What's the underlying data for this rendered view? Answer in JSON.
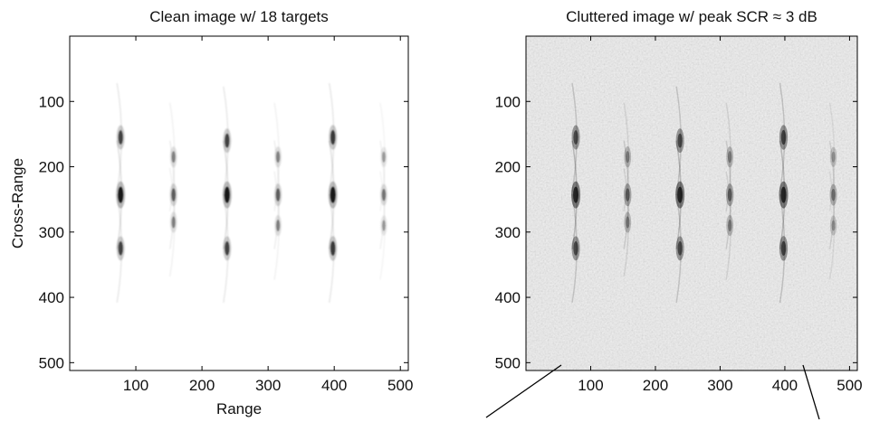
{
  "chart_data": [
    {
      "type": "heatmap",
      "title": "Clean image w/ 18 targets",
      "xlabel": "Range",
      "ylabel": "Cross-Range",
      "xlim": [
        0,
        512
      ],
      "ylim": [
        512,
        0
      ],
      "xticks": [
        100,
        200,
        300,
        400,
        500
      ],
      "yticks": [
        100,
        200,
        300,
        400,
        500
      ],
      "colormap": "gray-inverted",
      "background": "#ffffff",
      "targets": [
        {
          "x": 77,
          "y": 155,
          "strength": 0.75
        },
        {
          "x": 77,
          "y": 243,
          "strength": 1.0
        },
        {
          "x": 77,
          "y": 325,
          "strength": 0.75
        },
        {
          "x": 157,
          "y": 185,
          "strength": 0.45
        },
        {
          "x": 157,
          "y": 243,
          "strength": 0.6
        },
        {
          "x": 157,
          "y": 285,
          "strength": 0.45
        },
        {
          "x": 238,
          "y": 160,
          "strength": 0.75
        },
        {
          "x": 238,
          "y": 243,
          "strength": 1.0
        },
        {
          "x": 238,
          "y": 325,
          "strength": 0.75
        },
        {
          "x": 315,
          "y": 185,
          "strength": 0.45
        },
        {
          "x": 315,
          "y": 243,
          "strength": 0.6
        },
        {
          "x": 315,
          "y": 290,
          "strength": 0.45
        },
        {
          "x": 398,
          "y": 155,
          "strength": 0.8
        },
        {
          "x": 398,
          "y": 243,
          "strength": 1.0
        },
        {
          "x": 398,
          "y": 325,
          "strength": 0.8
        },
        {
          "x": 475,
          "y": 185,
          "strength": 0.35
        },
        {
          "x": 475,
          "y": 243,
          "strength": 0.5
        },
        {
          "x": 475,
          "y": 290,
          "strength": 0.35
        }
      ]
    },
    {
      "type": "heatmap",
      "title": "Cluttered image w/ peak SCR ≈ 3 dB",
      "xlabel": "",
      "ylabel": "",
      "xlim": [
        0,
        512
      ],
      "ylim": [
        512,
        0
      ],
      "xticks": [
        100,
        200,
        300,
        400,
        500
      ],
      "yticks": [
        100,
        200,
        300,
        400,
        500
      ],
      "colormap": "gray-inverted",
      "background": "#d2d2d2",
      "peak_scr_db": 3,
      "targets_ref": 0,
      "annotation_lines": 2
    }
  ]
}
